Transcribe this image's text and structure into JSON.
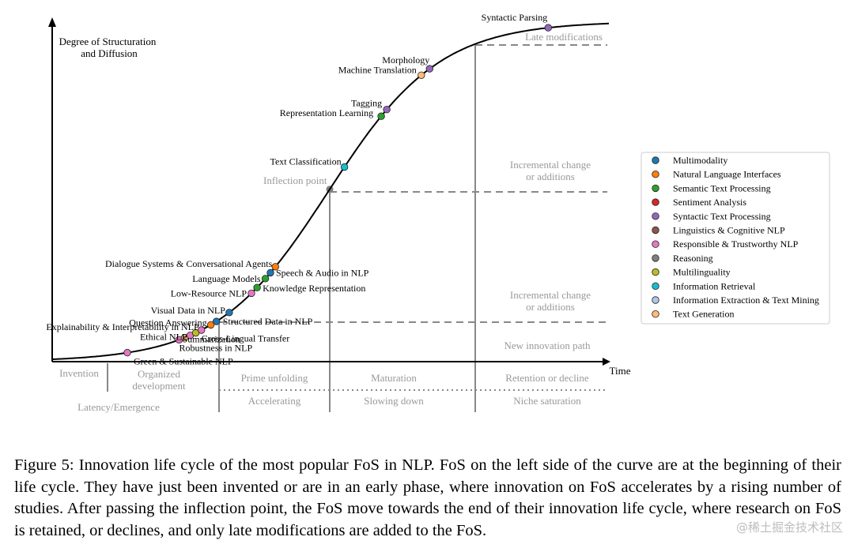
{
  "chart_data": {
    "type": "line",
    "title": "Innovation life cycle of the most popular FoS in NLP",
    "ylabel_lines": [
      "Degree of Structuration",
      "and Diffusion"
    ],
    "xlabel": "Time",
    "curve": "logistic S-curve",
    "legend_position": "right",
    "legend": [
      {
        "label": "Multimodality",
        "color": "#1f77b4"
      },
      {
        "label": "Natural Language Interfaces",
        "color": "#ff7f0e"
      },
      {
        "label": "Semantic Text Processing",
        "color": "#2ca02c"
      },
      {
        "label": "Sentiment Analysis",
        "color": "#d62728"
      },
      {
        "label": "Syntactic Text Processing",
        "color": "#9467bd"
      },
      {
        "label": "Linguistics & Cognitive NLP",
        "color": "#8c564b"
      },
      {
        "label": "Responsible & Trustworthy NLP",
        "color": "#e377c2"
      },
      {
        "label": "Reasoning",
        "color": "#7f7f7f"
      },
      {
        "label": "Multilinguality",
        "color": "#bcbd22"
      },
      {
        "label": "Information Retrieval",
        "color": "#17becf"
      },
      {
        "label": "Information Extraction & Text Mining",
        "color": "#aec7e8"
      },
      {
        "label": "Text Generation",
        "color": "#ffbb78"
      }
    ],
    "points": [
      {
        "label": "Green & Sustainable NLP",
        "category": "Responsible & Trustworthy NLP",
        "x": 0.135
      },
      {
        "label": "Robustness in NLP",
        "category": "Responsible & Trustworthy NLP",
        "x": 0.228
      },
      {
        "label": "Summarization",
        "category": "Text Generation",
        "x": 0.238
      },
      {
        "label": "Ethical NLP",
        "category": "Responsible & Trustworthy NLP",
        "x": 0.248
      },
      {
        "label": "Cross-Lingual Transfer",
        "category": "Multilinguality",
        "x": 0.258
      },
      {
        "label": "Explainability & Interpretability in NLP",
        "category": "Responsible & Trustworthy NLP",
        "x": 0.268
      },
      {
        "label": "Question Answering",
        "category": "Natural Language Interfaces",
        "x": 0.285
      },
      {
        "label": "Structured Data in NLP",
        "category": "Multimodality",
        "x": 0.295
      },
      {
        "label": "Visual Data in NLP",
        "category": "Multimodality",
        "x": 0.318
      },
      {
        "label": "Low-Resource NLP",
        "category": "Responsible & Trustworthy NLP",
        "x": 0.358
      },
      {
        "label": "Knowledge Representation",
        "category": "Semantic Text Processing",
        "x": 0.368
      },
      {
        "label": "Language Models",
        "category": "Semantic Text Processing",
        "x": 0.383
      },
      {
        "label": "Speech & Audio in NLP",
        "category": "Multimodality",
        "x": 0.392
      },
      {
        "label": "Dialogue Systems & Conversational Agents",
        "category": "Natural Language Interfaces",
        "x": 0.401
      },
      {
        "label": "Text Classification",
        "category": "Information Retrieval",
        "x": 0.525
      },
      {
        "label": "Representation Learning",
        "category": "Semantic Text Processing",
        "x": 0.591
      },
      {
        "label": "Tagging",
        "category": "Syntactic Text Processing",
        "x": 0.601
      },
      {
        "label": "Machine Translation",
        "category": "Text Generation",
        "x": 0.663
      },
      {
        "label": "Morphology",
        "category": "Syntactic Text Processing",
        "x": 0.678
      },
      {
        "label": "Syntactic Parsing",
        "category": "Syntactic Text Processing",
        "x": 0.891
      }
    ],
    "inflection_label": "Inflection point",
    "right_annotations": [
      "Late modifications",
      "Incremental change\nor additions",
      "Incremental change\nor additions",
      "New innovation path"
    ],
    "phases_top": [
      "Invention",
      "Organized\ndevelopment",
      "Prime unfolding",
      "Maturation",
      "Retention or decline"
    ],
    "phases_bottom": [
      "Latency/Emergence",
      "Accelerating",
      "Slowing down",
      "Niche saturation"
    ]
  },
  "caption": "Figure 5: Innovation life cycle of the most popular FoS in NLP. FoS on the left side of the curve are at the beginning of their life cycle. They have just been invented or are in an early phase, where innovation on FoS accelerates by a rising number of studies. After passing the inflection point, the FoS move towards the end of their innovation life cycle, where research on FoS is retained, or declines, and only late modifications are added to the FoS.",
  "watermark": "@稀土掘金技术社区"
}
